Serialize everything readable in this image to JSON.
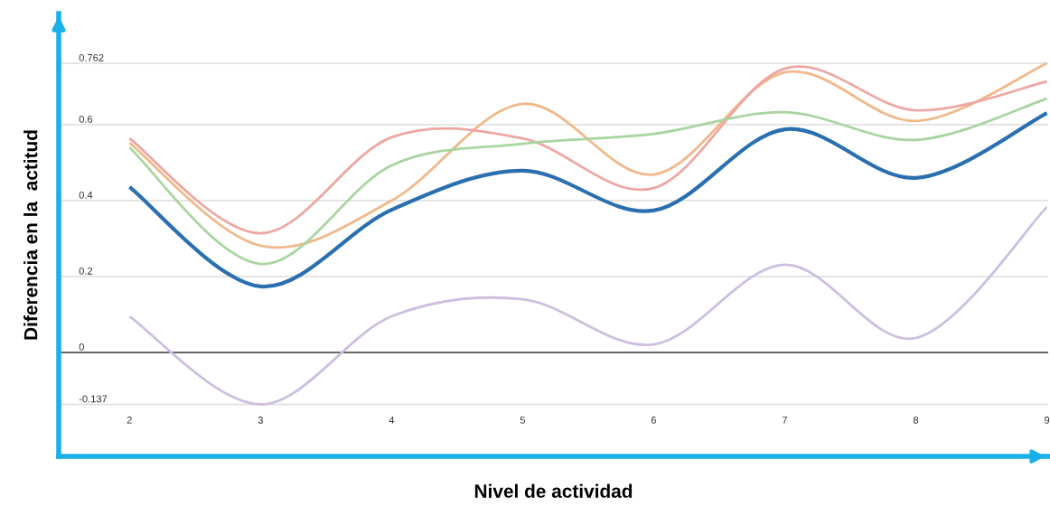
{
  "chart_data": {
    "type": "line",
    "xlabel": "Nivel de actividad",
    "ylabel": "Diferencia en la  actitud",
    "x": [
      2,
      3,
      4,
      5,
      6,
      7,
      8,
      9
    ],
    "series": [
      {
        "color": "#f0b98a",
        "values": [
          0.552,
          0.281,
          0.4,
          0.655,
          0.469,
          0.738,
          0.61,
          0.762
        ]
      },
      {
        "color": "#eda7a3",
        "values": [
          0.564,
          0.314,
          0.567,
          0.564,
          0.433,
          0.748,
          0.638,
          0.714
        ]
      },
      {
        "color": "#a8d5a0",
        "values": [
          0.54,
          0.233,
          0.493,
          0.55,
          0.576,
          0.633,
          0.56,
          0.669
        ]
      },
      {
        "color": "#cdbfe0",
        "values": [
          0.095,
          -0.137,
          0.095,
          0.14,
          0.021,
          0.231,
          0.038,
          0.383
        ]
      },
      {
        "color": "#2a6faf",
        "values": [
          0.436,
          0.174,
          0.376,
          0.479,
          0.374,
          0.588,
          0.46,
          0.631
        ]
      }
    ],
    "xlim": [
      1.46,
      9.01
    ],
    "ylim": [
      -0.274,
      0.893
    ],
    "xticks": [
      2,
      3,
      4,
      5,
      6,
      7,
      8,
      9
    ],
    "yticks": [
      -0.137,
      0,
      0.2,
      0.4,
      0.6,
      0.762
    ],
    "grid": "y",
    "legend": false,
    "marker": "none",
    "line_style": "solid",
    "ref_lines": [
      {
        "axis": "y",
        "value": 0,
        "color": "#666666"
      }
    ]
  }
}
